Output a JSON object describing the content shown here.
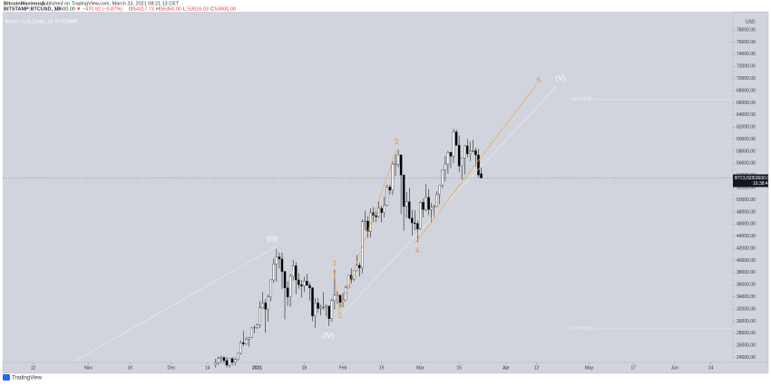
{
  "header": {
    "author": "BitcoinMaximus1",
    "published": "published on TradingView.com, March 23, 2021 08:21:13 CET",
    "symbol": "BITSTAMP:BTCUSD, 1D",
    "price": "53600.00",
    "change": "▼ −470.92 (−0.87%)",
    "ohlc": [
      "O:",
      "54317.73",
      "H:",
      "55350.00",
      "L:",
      "53516.03",
      "C:",
      "53600.00"
    ]
  },
  "chart_data": {
    "type": "candlestick",
    "title": "Bitcoin / U.S. Dollar, 1D, BITSTAMP",
    "x": [
      -15,
      -14,
      -13,
      -12,
      -11,
      -10,
      -9,
      -8,
      -7,
      -6,
      -5,
      -4,
      -3,
      -2,
      -1,
      0,
      1,
      2,
      3,
      4,
      5,
      6,
      7,
      8,
      9,
      10,
      11,
      12,
      13,
      14,
      15,
      16,
      17,
      18,
      19,
      20,
      21,
      22,
      23,
      24,
      25,
      26,
      27,
      28,
      29,
      30,
      31,
      32,
      33,
      34,
      35,
      36,
      37,
      38,
      39,
      40,
      41,
      42,
      43,
      44,
      45,
      46,
      47,
      48,
      49,
      50,
      51,
      52,
      53,
      54,
      55,
      56,
      57,
      58,
      59,
      60,
      61,
      62,
      63,
      64,
      65,
      66,
      67,
      68,
      69,
      70,
      71,
      72,
      73,
      74,
      75,
      76,
      77,
      78,
      79,
      80,
      81
    ],
    "open": [
      22800,
      23150,
      23850,
      24000,
      23500,
      22750,
      23820,
      23250,
      23700,
      24700,
      26450,
      26250,
      27050,
      27350,
      28880,
      28950,
      29350,
      32200,
      33000,
      31970,
      33990,
      36800,
      39400,
      40600,
      40250,
      38200,
      35500,
      34000,
      37400,
      39150,
      36800,
      36000,
      35800,
      36600,
      35900,
      35500,
      30850,
      33000,
      32100,
      32300,
      32300,
      32500,
      30400,
      33400,
      34300,
      34300,
      33100,
      33500,
      35500,
      37600,
      36900,
      38300,
      39200,
      38800,
      46400,
      46500,
      44800,
      47900,
      47400,
      47200,
      48600,
      47900,
      49100,
      52100,
      51600,
      55900,
      55900,
      57400,
      54100,
      48900,
      49700,
      47000,
      46200,
      46100,
      45200,
      49600,
      48400,
      50400,
      48400,
      48800,
      48900,
      50900,
      52400,
      54900,
      55900,
      57800,
      57200,
      61200,
      59000,
      55600,
      56900,
      58900,
      57600,
      58000,
      58100,
      57400,
      54317.73
    ],
    "high": [
      23800,
      24250,
      24300,
      24250,
      24100,
      23850,
      24100,
      24000,
      24800,
      26800,
      28400,
      27400,
      27400,
      29000,
      29300,
      29600,
      33300,
      34800,
      33600,
      34400,
      36900,
      40300,
      41900,
      41300,
      41300,
      38300,
      36600,
      37800,
      40100,
      39700,
      37900,
      36800,
      37300,
      37800,
      36400,
      35600,
      33800,
      33800,
      32700,
      34800,
      32800,
      32500,
      33700,
      38500,
      34900,
      34300,
      34700,
      35900,
      37600,
      38700,
      38300,
      40900,
      39700,
      46800,
      48200,
      47300,
      48600,
      48800,
      48100,
      49700,
      49000,
      50500,
      52500,
      52500,
      56300,
      57500,
      58300,
      57500,
      54200,
      51300,
      52000,
      48400,
      48300,
      46600,
      49800,
      50200,
      52600,
      51800,
      49500,
      49200,
      51400,
      52400,
      54900,
      57200,
      58100,
      58000,
      61700,
      61600,
      60600,
      57000,
      59000,
      60000,
      59600,
      59900,
      58600,
      58400,
      55350
    ],
    "low": [
      22350,
      22800,
      23100,
      23100,
      22400,
      22350,
      22700,
      22700,
      23450,
      24500,
      25900,
      26100,
      25800,
      27200,
      28000,
      28700,
      28900,
      32000,
      28100,
      29900,
      33300,
      36300,
      36500,
      38700,
      35300,
      30300,
      32500,
      32400,
      36700,
      34400,
      35300,
      33900,
      34800,
      35900,
      33400,
      30000,
      28900,
      31400,
      31000,
      31900,
      30800,
      29200,
      29900,
      31900,
      32900,
      32300,
      32300,
      33400,
      35400,
      36200,
      36600,
      38200,
      37400,
      37900,
      45000,
      43700,
      43800,
      46300,
      46300,
      47000,
      46300,
      47100,
      48900,
      50900,
      50800,
      53900,
      55400,
      47700,
      44900,
      47000,
      46700,
      44100,
      45000,
      43000,
      45000,
      47100,
      48100,
      47500,
      46300,
      47100,
      48800,
      49300,
      51900,
      53100,
      54300,
      55200,
      56100,
      58900,
      54600,
      53300,
      54200,
      57000,
      56400,
      57800,
      55500,
      53700,
      53516.03
    ],
    "close": [
      23150,
      23850,
      24000,
      23500,
      22750,
      23820,
      23250,
      23700,
      24700,
      26450,
      26250,
      27050,
      27350,
      28880,
      28950,
      29350,
      32200,
      33000,
      31970,
      33990,
      36800,
      39400,
      40600,
      40250,
      38200,
      35500,
      34000,
      37400,
      39150,
      36800,
      36000,
      35800,
      36600,
      35900,
      35500,
      30850,
      33000,
      32100,
      32300,
      32300,
      32500,
      30400,
      33400,
      34300,
      34300,
      33100,
      33500,
      35500,
      37600,
      36900,
      38300,
      39200,
      38800,
      46400,
      46500,
      44800,
      47900,
      47400,
      47200,
      48600,
      47900,
      49100,
      52100,
      51600,
      55900,
      55900,
      57400,
      54100,
      48900,
      49700,
      47000,
      46200,
      46100,
      45200,
      49600,
      48400,
      50400,
      48400,
      48800,
      48900,
      50900,
      52400,
      54900,
      55900,
      57800,
      57200,
      61200,
      59000,
      55600,
      56900,
      58900,
      57600,
      58000,
      58100,
      57400,
      54100,
      53600
    ],
    "up_color": "#ffffff",
    "down_color": "#000000",
    "xlim": [
      -92,
      172
    ],
    "xticks": [
      {
        "value": -81,
        "label": "12"
      },
      {
        "value": -61,
        "label": "Nov"
      },
      {
        "value": -46,
        "label": "16"
      },
      {
        "value": -31,
        "label": "Dec"
      },
      {
        "value": -18,
        "label": "14"
      },
      {
        "value": 0,
        "label": "2021"
      },
      {
        "value": 17,
        "label": "18"
      },
      {
        "value": 31,
        "label": "Feb"
      },
      {
        "value": 45,
        "label": "15"
      },
      {
        "value": 59,
        "label": "Mar"
      },
      {
        "value": 73,
        "label": "15"
      },
      {
        "value": 90,
        "label": "Apr"
      },
      {
        "value": 101,
        "label": "12"
      },
      {
        "value": 120,
        "label": "May"
      },
      {
        "value": 136,
        "label": "17"
      },
      {
        "value": 151,
        "label": "Jun"
      },
      {
        "value": 164,
        "label": "14"
      }
    ],
    "ylim": [
      23200,
      81000
    ],
    "yticks": [
      {
        "value": 24000,
        "label": "24000.00"
      },
      {
        "value": 26000,
        "label": "26000.00"
      },
      {
        "value": 28000,
        "label": "28000.00"
      },
      {
        "value": 30000,
        "label": "30000.00"
      },
      {
        "value": 32000,
        "label": "32000.00"
      },
      {
        "value": 34000,
        "label": "34000.00"
      },
      {
        "value": 36000,
        "label": "36000.00"
      },
      {
        "value": 38000,
        "label": "38000.00"
      },
      {
        "value": 40000,
        "label": "40000.00"
      },
      {
        "value": 42000,
        "label": "42000.00"
      },
      {
        "value": 44000,
        "label": "44000.00"
      },
      {
        "value": 46000,
        "label": "46000.00"
      },
      {
        "value": 48000,
        "label": "48000.00"
      },
      {
        "value": 50000,
        "label": "50000.00"
      },
      {
        "value": 52000,
        "label": "52000.00"
      },
      {
        "value": 54000,
        "label": "54000.00"
      },
      {
        "value": 56000,
        "label": "56000.00"
      },
      {
        "value": 58000,
        "label": "58000.00"
      },
      {
        "value": 60000,
        "label": "60000.00"
      },
      {
        "value": 62000,
        "label": "62000.00"
      },
      {
        "value": 64000,
        "label": "64000.00"
      },
      {
        "value": 66000,
        "label": "66000.00"
      },
      {
        "value": 68000,
        "label": "68000.00"
      },
      {
        "value": 70000,
        "label": "70000.00"
      },
      {
        "value": 72000,
        "label": "72000.00"
      },
      {
        "value": 74000,
        "label": "74000.00"
      },
      {
        "value": 76000,
        "label": "76000.00"
      },
      {
        "value": 78000,
        "label": "78000.00"
      }
    ],
    "currency": "USD",
    "grid": false,
    "last_price": {
      "value": 53600,
      "symbol": "BTCUSD",
      "label": "53600.00",
      "countdown": "16:38:48"
    },
    "hlines": [
      {
        "value": 66546.85,
        "label": "1(66546.85)"
      },
      {
        "value": 28746.05,
        "label": "0(28746.05)"
      }
    ],
    "wave_labels": [
      "(III)",
      "(IV)",
      "1",
      "2",
      "3",
      "4",
      "5",
      "(V)"
    ],
    "footer": "TradingView"
  }
}
